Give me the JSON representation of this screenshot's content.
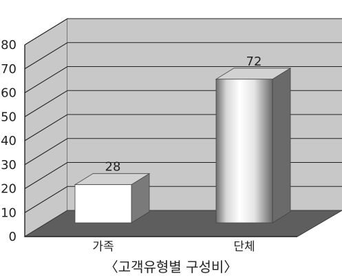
{
  "chart_data": {
    "type": "bar",
    "categories": [
      "가족",
      "단체"
    ],
    "values": [
      28,
      72
    ],
    "value_labels": [
      "28",
      "72"
    ],
    "ylim": [
      0,
      80
    ],
    "yticks": [
      0,
      10,
      20,
      30,
      40,
      50,
      60,
      70,
      80
    ],
    "ytick_labels": [
      "0",
      "10",
      "20",
      "30",
      "40",
      "50",
      "60",
      "70",
      "80"
    ],
    "grid": true,
    "legend": "none",
    "caption": "〈고객유형별 구성비〉",
    "colors": {
      "wall": "#c8c8c8",
      "floor": "#5e5e5e",
      "floor_edge": "#3a3a3a",
      "grid": "#222222",
      "bar_front": "#ffffff",
      "bar_side": "#7a7a7a",
      "bar_top": "#d2d2d2"
    }
  }
}
